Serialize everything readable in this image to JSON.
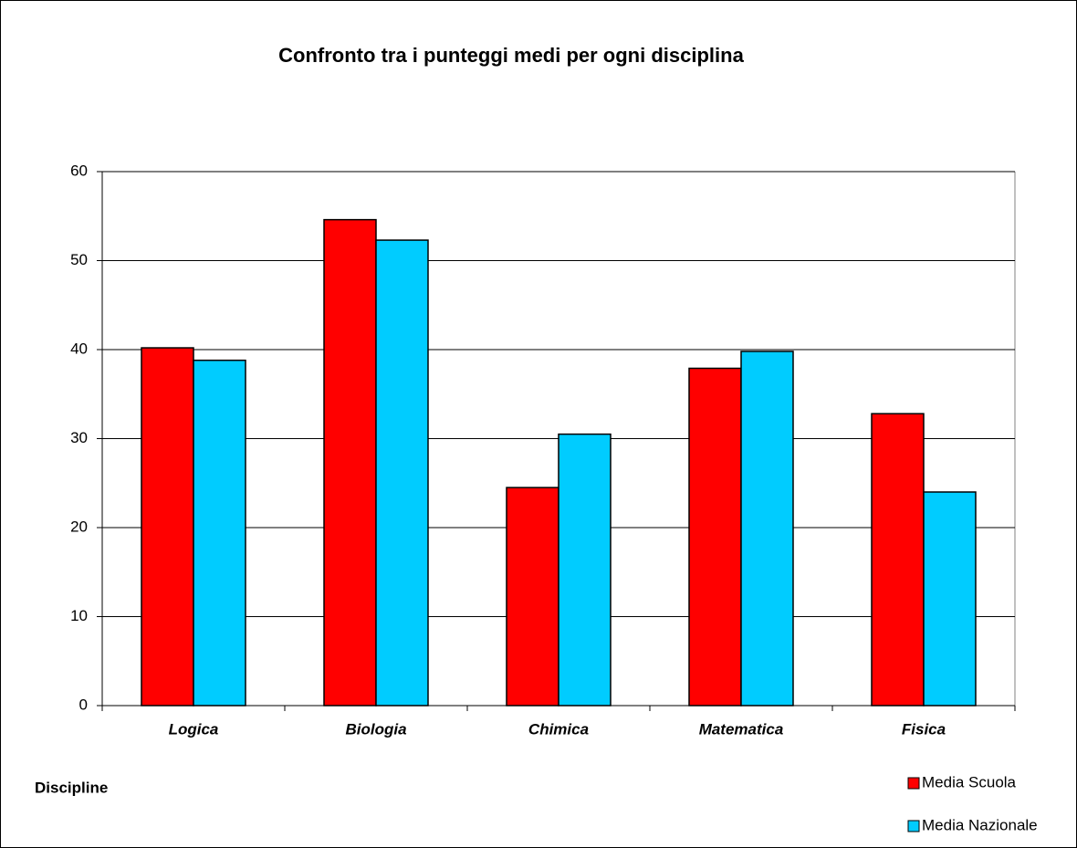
{
  "chart_data": {
    "type": "bar",
    "title": "Confronto tra i punteggi medi per ogni disciplina",
    "x_label": "Discipline",
    "categories": [
      "Logica",
      "Biologia",
      "Chimica",
      "Matematica",
      "Fisica"
    ],
    "series": [
      {
        "name": "Media Scuola",
        "color": "#ff0000",
        "values": [
          40.2,
          54.6,
          24.5,
          37.9,
          32.8
        ]
      },
      {
        "name": "Media Nazionale",
        "color": "#00ccff",
        "values": [
          38.8,
          52.3,
          30.5,
          39.8,
          24.0
        ]
      }
    ],
    "ylim": [
      0,
      60
    ],
    "yticks": [
      0,
      10,
      20,
      30,
      40,
      50,
      60
    ],
    "grid": true,
    "legend": "bottom-right"
  }
}
